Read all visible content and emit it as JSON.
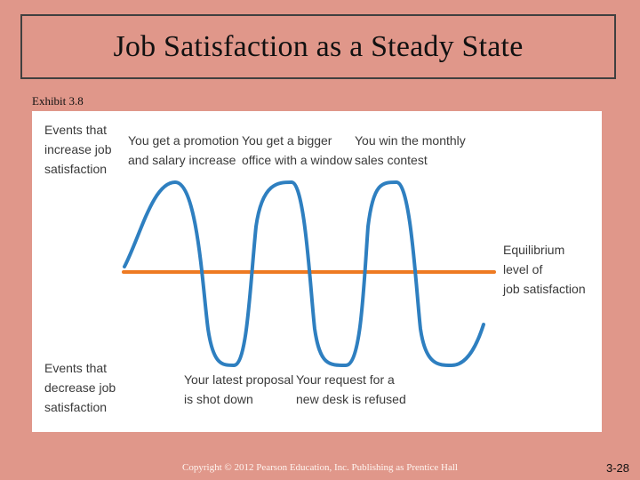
{
  "slide": {
    "title": "Job Satisfaction as a Steady State",
    "exhibit": "Exhibit 3.8",
    "footer": "Copyright © 2012 Pearson Education, Inc. Publishing as Prentice Hall",
    "page_number": "3-28"
  },
  "diagram": {
    "increase_label": [
      "Events that",
      "increase job",
      "satisfaction"
    ],
    "decrease_label": [
      "Events that",
      "decrease job",
      "satisfaction"
    ],
    "equilibrium_label": [
      "Equilibrium",
      "level of",
      "job satisfaction"
    ],
    "positive_events": [
      [
        "You get a promotion",
        "and salary increase"
      ],
      [
        "You get a bigger",
        "office with a window"
      ],
      [
        "You win the monthly",
        "sales contest"
      ]
    ],
    "negative_events": [
      [
        "Your latest proposal",
        "is shot down"
      ],
      [
        "Your request for a",
        "new desk is refused"
      ]
    ],
    "colors": {
      "wave": "#2e7fc0",
      "equilibrium_line": "#ee7a22",
      "text": "#3a3a3a"
    }
  }
}
